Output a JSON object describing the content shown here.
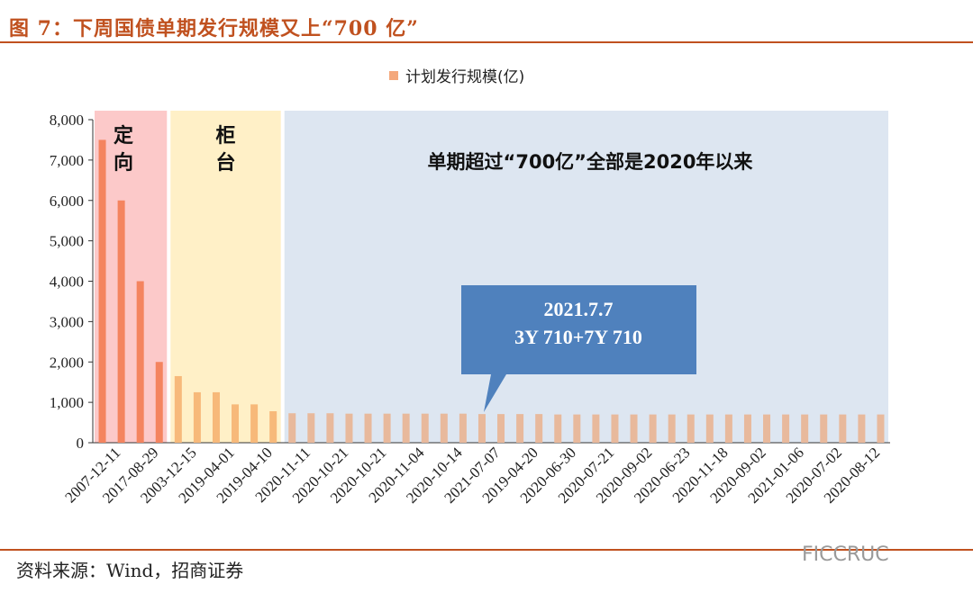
{
  "title": "图 7：下周国债单期发行规模又上“700 亿”",
  "source": "资料来源：Wind，招商证券",
  "watermark": "FICCRUC",
  "colors": {
    "brand": "#c0511f",
    "bar_dingxiang": "#f4845f",
    "bar_guitai": "#f7b97a",
    "bar_recent": "#e8b99c",
    "band_dingxiang": "#fcc9c9",
    "band_guitai": "#fff0c7",
    "band_recent": "#dde6f1",
    "callout": "#4f81bd"
  },
  "chart_data": {
    "type": "bar",
    "legend": "计划发行规模(亿)",
    "legend_position": "top-center",
    "ylim": [
      0,
      8000
    ],
    "yticks": [
      "0",
      "1,000",
      "2,000",
      "3,000",
      "4,000",
      "5,000",
      "6,000",
      "7,000",
      "8,000"
    ],
    "grid": false,
    "categories": [
      "2007-12-11",
      "",
      "2017-08-29",
      "",
      "2003-12-15",
      "",
      "2019-04-01",
      "",
      "2019-04-10",
      "",
      "2020-11-11",
      "",
      "2020-10-21",
      "",
      "2020-10-21",
      "",
      "2020-11-04",
      "",
      "2020-10-14",
      "",
      "2021-07-07",
      "",
      "2019-04-20",
      "",
      "2020-06-30",
      "",
      "2020-07-21",
      "",
      "2020-09-02",
      "",
      "2020-06-23",
      "",
      "2020-11-18",
      "",
      "2020-09-02",
      "",
      "2021-01-06",
      "",
      "2020-07-02",
      "",
      "2020-08-12",
      ""
    ],
    "values": [
      7500,
      6000,
      4000,
      2000,
      1650,
      1250,
      1250,
      950,
      950,
      780,
      730,
      730,
      730,
      720,
      720,
      720,
      720,
      720,
      720,
      720,
      710,
      710,
      710,
      710,
      700,
      700,
      700,
      700,
      700,
      700,
      700,
      700,
      700,
      700,
      700,
      700,
      700,
      700,
      700,
      700,
      700,
      700
    ],
    "regions": [
      {
        "label": "定向",
        "from": 0,
        "to": 3
      },
      {
        "label": "柜台",
        "from": 4,
        "to": 9
      },
      {
        "label": "单期超过“700亿”全部是2020年以来",
        "from": 10,
        "to": 41
      }
    ],
    "annotation": {
      "line1": "2021.7.7",
      "line2": "3Y 710+7Y 710",
      "index": 20
    }
  }
}
